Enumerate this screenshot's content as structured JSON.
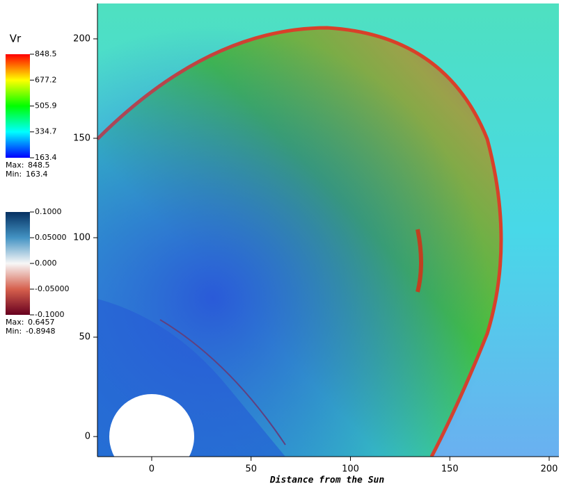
{
  "chart_data": {
    "type": "pseudocolor",
    "x_label": "Distance from the Sun",
    "xlim": [
      -27.3,
      204.9
    ],
    "xticks": [
      0,
      50,
      100,
      150,
      200
    ],
    "ylim": [
      -10.1,
      217.8
    ],
    "yticks": [
      0,
      50,
      100,
      150,
      200
    ],
    "colorbars": [
      {
        "title": "Vr",
        "range": [
          163.4,
          848.5
        ],
        "colors": [
          "#0000ff",
          "#00ffff",
          "#00ff00",
          "#ffff00",
          "#ff0000"
        ],
        "ticks": [
          848.5,
          677.2,
          505.9,
          334.7,
          163.4
        ],
        "max": {
          "label": "Max:",
          "value": 848.5
        },
        "min": {
          "label": "Min:",
          "value": 163.4
        }
      },
      {
        "range": [
          -0.1,
          0.1
        ],
        "colors": [
          "#67001f",
          "#d6604d",
          "#f7f7f7",
          "#4393c3",
          "#053061"
        ],
        "ticks": [
          {
            "value": 0.1,
            "label": "0.1000"
          },
          {
            "value": 0.05,
            "label": "0.05000"
          },
          {
            "value": 0,
            "label": "0.000"
          },
          {
            "value": -0.05,
            "label": "-0.05000"
          },
          {
            "value": -0.1,
            "label": "-0.1000"
          }
        ],
        "max": {
          "label": "Max:",
          "value": 0.6457
        },
        "min": {
          "label": "Min:",
          "value": -0.8948
        }
      }
    ]
  }
}
